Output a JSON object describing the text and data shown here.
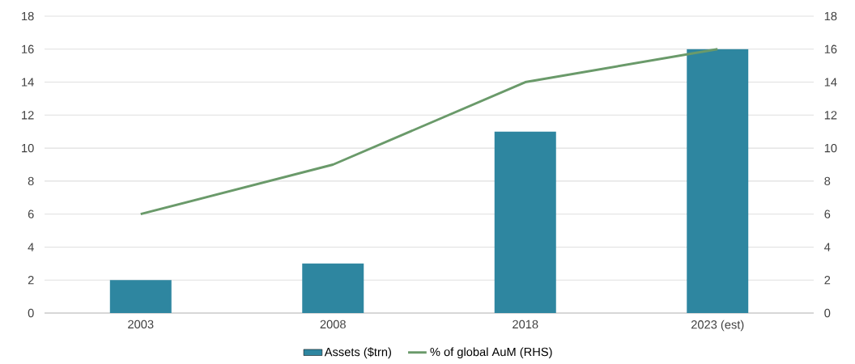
{
  "chart_data": {
    "type": "bar",
    "categories": [
      "2003",
      "2008",
      "2018",
      "2023 (est)"
    ],
    "series": [
      {
        "name": "Assets ($trn)",
        "color": "#2e86a0",
        "values": [
          2,
          3,
          11,
          16
        ]
      },
      {
        "name": "% of global AuM (RHS)",
        "color": "#6a9a6a",
        "values": [
          6,
          9,
          14,
          16
        ],
        "type": "line",
        "axis": "y2"
      }
    ],
    "ylim": [
      0,
      18
    ],
    "yticks": [
      0,
      2,
      4,
      6,
      8,
      10,
      12,
      14,
      16,
      18
    ],
    "y2lim": [
      0,
      18
    ],
    "y2ticks": [
      0,
      2,
      4,
      6,
      8,
      10,
      12,
      14,
      16,
      18
    ],
    "grid": "y",
    "legend": "bottom"
  }
}
